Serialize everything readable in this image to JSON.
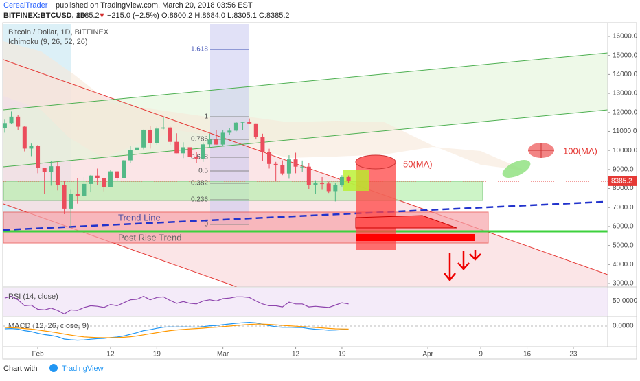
{
  "header": {
    "author": "CerealTrader",
    "published": "published on TradingView.com, March 20, 2018 03:56 EST",
    "symbol": "BITFINEX:BTCUSD, 1D",
    "price": "8385.2",
    "arrow": "▼",
    "change": "−215.0 (−2.5%)",
    "ohlc": "O:8600.2 H:8684.0 L:8305.1 C:8385.2"
  },
  "chart_data": {
    "type": "candlestick",
    "title": "Bitcoin / Dollar, 1D, BITFINEX",
    "indicator": "Ichimoku (9, 26, 52, 26)",
    "up_color": "#53b987",
    "down_color": "#eb4d5c",
    "x": [
      27,
      28,
      29,
      30,
      31,
      32,
      33,
      34,
      35,
      36,
      37,
      38,
      39,
      40,
      41,
      42,
      43,
      44,
      45,
      46,
      47,
      48,
      49,
      50,
      51,
      52,
      53,
      54,
      55,
      56,
      57,
      58,
      59,
      60,
      61,
      62,
      63,
      64,
      65,
      66,
      67,
      68,
      69,
      70,
      71,
      72,
      73,
      74,
      75,
      76,
      77,
      78,
      79
    ],
    "open": [
      11180,
      11440,
      11780,
      11250,
      10100,
      10230,
      9090,
      8850,
      9170,
      8200,
      6940,
      7700,
      7600,
      8240,
      8680,
      8540,
      8080,
      8900,
      8540,
      9480,
      10040,
      10160,
      11090,
      10400,
      11150,
      11210,
      10450,
      9850,
      10170,
      9670,
      9580,
      10320,
      10570,
      10310,
      10930,
      11040,
      11460,
      11500,
      11420,
      10720,
      9900,
      9290,
      9230,
      8790,
      9530,
      9150,
      9150,
      8200,
      8270,
      8260,
      7860,
      8200,
      8600.2
    ],
    "high": [
      11620,
      12050,
      11880,
      11290,
      10360,
      10290,
      9090,
      9450,
      9400,
      8380,
      7930,
      8550,
      8600,
      8710,
      9050,
      8540,
      8980,
      8920,
      9500,
      10230,
      10300,
      11100,
      11270,
      11250,
      11780,
      11260,
      10900,
      10430,
      10500,
      9900,
      10420,
      10880,
      11060,
      11090,
      11190,
      11500,
      11500,
      11680,
      11420,
      10880,
      10090,
      9400,
      9480,
      9750,
      9880,
      9470,
      9350,
      8430,
      8600,
      8350,
      8270,
      8700,
      8684
    ],
    "low": [
      10930,
      11400,
      11080,
      9950,
      9700,
      8800,
      7700,
      8150,
      7900,
      6650,
      5920,
      7200,
      7550,
      7800,
      8170,
      7850,
      8060,
      8380,
      8530,
      9350,
      9700,
      10060,
      10100,
      10300,
      11110,
      10300,
      9850,
      9600,
      9360,
      9350,
      9400,
      10150,
      10300,
      10260,
      10810,
      11000,
      11080,
      11410,
      10580,
      9460,
      9050,
      8360,
      8700,
      8510,
      8800,
      8870,
      7960,
      7720,
      7930,
      7760,
      7320,
      8100,
      8305.1
    ],
    "close": [
      11440,
      11780,
      11250,
      10100,
      10230,
      9090,
      8850,
      9170,
      8200,
      6940,
      7700,
      7600,
      8240,
      8680,
      8540,
      8080,
      8900,
      8540,
      9480,
      10040,
      10160,
      11090,
      10400,
      11150,
      11210,
      10450,
      9850,
      10170,
      9670,
      9580,
      10320,
      10570,
      10310,
      10930,
      11040,
      11460,
      11500,
      11420,
      10720,
      9900,
      9290,
      9230,
      8790,
      9530,
      9150,
      9150,
      8200,
      8270,
      8260,
      7860,
      8200,
      8600,
      8385.2
    ],
    "last_price": 8385.2,
    "xlim": [
      26.8,
      118.2
    ],
    "xticks": [
      {
        "value": 32,
        "label": "Feb"
      },
      {
        "value": 43,
        "label": "12"
      },
      {
        "value": 50,
        "label": "19"
      },
      {
        "value": 60,
        "label": "Mar"
      },
      {
        "value": 71,
        "label": "12"
      },
      {
        "value": 78,
        "label": "19"
      },
      {
        "value": 91,
        "label": "Apr"
      },
      {
        "value": 99,
        "label": "9"
      },
      {
        "value": 106,
        "label": "16"
      },
      {
        "value": 113,
        "label": "23"
      }
    ],
    "ylim": [
      2820,
      16650
    ],
    "yticks": [
      {
        "value": 3000,
        "label": "3000.0"
      },
      {
        "value": 4000,
        "label": "4000.0"
      },
      {
        "value": 5000,
        "label": "5000.0"
      },
      {
        "value": 6000,
        "label": "6000.0"
      },
      {
        "value": 7000,
        "label": "7000.0"
      },
      {
        "value": 8000,
        "label": "8000.0"
      },
      {
        "value": 9000,
        "label": "9000.0"
      },
      {
        "value": 10000,
        "label": "10000.0"
      },
      {
        "value": 11000,
        "label": "11000.0"
      },
      {
        "value": 12000,
        "label": "12000.0"
      },
      {
        "value": 13000,
        "label": "13000.0"
      },
      {
        "value": 14000,
        "label": "14000.0"
      },
      {
        "value": 15000,
        "label": "15000.0"
      },
      {
        "value": 16000,
        "label": "16000.0"
      }
    ],
    "annotations": {
      "fib": [
        "1.618",
        "1",
        "0.786",
        "0.618",
        "0.5",
        "0.382",
        "0.236",
        "0"
      ],
      "trend_line": "Trend Line",
      "post_rise": "Post Rise Trend",
      "ma50": "50(MA)",
      "ma100": "100(MA)"
    },
    "rsi": {
      "title": "RSI (14, close)",
      "color": "#8e44ad",
      "ylim": [
        25,
        72.6
      ],
      "yticks": [
        {
          "value": 50,
          "label": "50.0000"
        }
      ],
      "values": [
        55,
        58,
        52,
        42,
        43,
        36,
        35,
        38,
        34,
        28,
        35,
        34,
        39,
        42,
        41,
        39,
        44,
        42,
        47,
        52,
        53,
        58,
        52,
        56,
        57,
        51,
        46,
        49,
        46,
        45,
        50,
        52,
        50,
        54,
        55,
        57,
        57,
        56,
        50,
        45,
        42,
        42,
        40,
        48,
        45,
        45,
        40,
        41,
        40,
        39,
        43,
        47,
        45
      ]
    },
    "macd": {
      "title": "MACD (12, 26, close, 9)",
      "ylim": [
        -1500,
        650
      ],
      "yticks": [
        {
          "value": 0,
          "label": "0.0000"
        }
      ],
      "series": [
        {
          "color": "#2196f3",
          "values": [
            -200,
            -180,
            -220,
            -330,
            -400,
            -520,
            -620,
            -680,
            -780,
            -950,
            -1000,
            -1030,
            -1010,
            -960,
            -920,
            -900,
            -840,
            -800,
            -720,
            -600,
            -480,
            -330,
            -260,
            -160,
            -80,
            -60,
            -70,
            -60,
            -70,
            -80,
            -40,
            20,
            40,
            100,
            150,
            200,
            240,
            270,
            230,
            130,
            30,
            -50,
            -90,
            -80,
            -100,
            -110,
            -180,
            -230,
            -260,
            -300,
            -290,
            -260,
            -250
          ]
        },
        {
          "color": "#ff9800",
          "values": [
            -100,
            -120,
            -140,
            -180,
            -220,
            -280,
            -350,
            -420,
            -490,
            -580,
            -660,
            -730,
            -790,
            -820,
            -840,
            -850,
            -850,
            -840,
            -820,
            -780,
            -720,
            -640,
            -560,
            -480,
            -400,
            -330,
            -280,
            -240,
            -210,
            -180,
            -150,
            -110,
            -80,
            -40,
            0,
            40,
            80,
            120,
            140,
            140,
            120,
            90,
            50,
            20,
            -10,
            -40,
            -70,
            -100,
            -130,
            -170,
            -200,
            -210,
            -220
          ]
        }
      ]
    }
  },
  "footer": {
    "prefix": "Chart with",
    "brand": "TradingView"
  }
}
